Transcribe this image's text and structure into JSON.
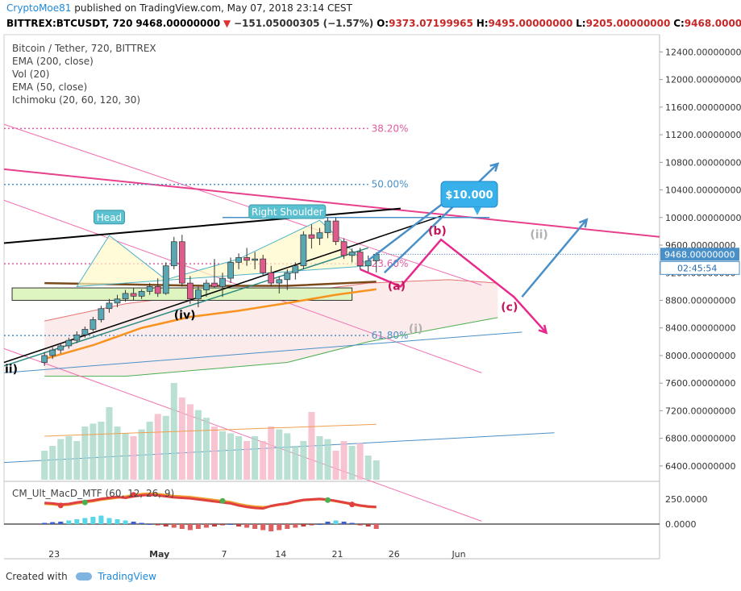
{
  "header": {
    "author": "CryptoMoe81",
    "published_text": "published on TradingView.com, May 07, 2018 23:14 CEST",
    "symbol_line": "BITTREX:BTCUSDT, 720",
    "last": "9468.00000000",
    "change": "−151.05000305 (−1.57%)",
    "o_label": "O:",
    "o_value": "9373.07199965",
    "h_label": "H:",
    "h_value": "9495.00000000",
    "l_label": "L:",
    "l_value": "9205.00000000",
    "c_label": "C:",
    "c_value": "9468.00000000"
  },
  "legend": {
    "title": "Bitcoin / Tether, 720, BITTREX",
    "items": [
      "EMA (200, close)",
      "Vol (20)",
      "EMA (50, close)",
      "Ichimoku (20, 60, 120, 30)"
    ]
  },
  "footer": {
    "created_with": "Created with",
    "brand": "TradingView"
  },
  "colors": {
    "up": "#5aa7b4",
    "down": "#e05a8c",
    "ema200": "#7a4a1a",
    "ema50": "#f7931e",
    "fib": "#e05aa0",
    "fib_blue": "#4a90c8",
    "projection_blue": "#4a90c8",
    "projection_pink": "#e8288c",
    "neckline": "#000000",
    "price_tag": "#4a90c8",
    "macd_line": "#e04040",
    "macd_signal": "#f0a030"
  },
  "chart_data": [
    {
      "type": "candlestick",
      "title": "Bitcoin / Tether, 720, BITTREX",
      "x_ticks": [
        "23",
        "May",
        "7",
        "14",
        "21",
        "26",
        "Jun"
      ],
      "y_ticks": [
        "12400.00000000",
        "12000.00000000",
        "11600.00000000",
        "11200.00000000",
        "10800.00000000",
        "10400.00000000",
        "10000.00000000",
        "9600.00000000",
        "9200.00000000",
        "8800.00000000",
        "8400.00000000",
        "8000.00000000",
        "7600.00000000",
        "7200.00000000",
        "6800.00000000",
        "6400.00000000"
      ],
      "ylim": [
        6200,
        12650
      ],
      "last_price_label": "9468.00000000",
      "countdown_label": "02:45:54",
      "last_price": 9468,
      "candles": [
        [
          7900,
          8050,
          7850,
          8000
        ],
        [
          8000,
          8120,
          7950,
          8080
        ],
        [
          8080,
          8180,
          8030,
          8140
        ],
        [
          8140,
          8260,
          8100,
          8220
        ],
        [
          8220,
          8350,
          8180,
          8300
        ],
        [
          8300,
          8420,
          8260,
          8380
        ],
        [
          8380,
          8560,
          8350,
          8520
        ],
        [
          8520,
          8720,
          8480,
          8680
        ],
        [
          8680,
          8820,
          8620,
          8760
        ],
        [
          8760,
          8880,
          8700,
          8820
        ],
        [
          8820,
          8950,
          8780,
          8900
        ],
        [
          8900,
          8980,
          8800,
          8860
        ],
        [
          8860,
          8960,
          8820,
          8930
        ],
        [
          8930,
          9050,
          8880,
          9000
        ],
        [
          9000,
          9120,
          8850,
          8900
        ],
        [
          8900,
          9350,
          8880,
          9300
        ],
        [
          9300,
          9720,
          9250,
          9650
        ],
        [
          9650,
          9750,
          9000,
          9050
        ],
        [
          9050,
          9150,
          8750,
          8820
        ],
        [
          8820,
          9000,
          8700,
          8950
        ],
        [
          8950,
          9100,
          8850,
          9050
        ],
        [
          9050,
          9400,
          8980,
          9000
        ],
        [
          9000,
          9200,
          8850,
          9120
        ],
        [
          9120,
          9420,
          9050,
          9350
        ],
        [
          9350,
          9480,
          9250,
          9420
        ],
        [
          9420,
          9560,
          9300,
          9380
        ],
        [
          9380,
          9500,
          9250,
          9400
        ],
        [
          9400,
          9460,
          9150,
          9200
        ],
        [
          9200,
          9300,
          9000,
          9050
        ],
        [
          9050,
          9150,
          8900,
          9100
        ],
        [
          9100,
          9250,
          8950,
          9200
        ],
        [
          9200,
          9350,
          9100,
          9300
        ],
        [
          9300,
          9800,
          9250,
          9750
        ],
        [
          9750,
          9900,
          9550,
          9700
        ],
        [
          9700,
          9850,
          9600,
          9780
        ],
        [
          9780,
          10000,
          9700,
          9950
        ],
        [
          9950,
          10000,
          9600,
          9650
        ],
        [
          9650,
          9700,
          9400,
          9450
        ],
        [
          9450,
          9550,
          9350,
          9500
        ],
        [
          9500,
          9560,
          9250,
          9300
        ],
        [
          9300,
          9450,
          9205,
          9373
        ],
        [
          9373,
          9495,
          9205,
          9468
        ]
      ],
      "ema50": [
        [
          0,
          7950
        ],
        [
          6,
          8150
        ],
        [
          12,
          8400
        ],
        [
          18,
          8560
        ],
        [
          24,
          8650
        ],
        [
          30,
          8760
        ],
        [
          36,
          8880
        ],
        [
          41,
          8960
        ]
      ],
      "ema200": [
        [
          0,
          9050
        ],
        [
          10,
          9030
        ],
        [
          20,
          9010
        ],
        [
          30,
          9010
        ],
        [
          41,
          9070
        ]
      ],
      "fib_levels": [
        {
          "label": "38.20%",
          "price": 11290
        },
        {
          "label": "50.00%",
          "price": 10480
        },
        {
          "label": "23.60%",
          "price": 9330
        },
        {
          "label": "61.80%",
          "price": 8290
        }
      ],
      "annotations": {
        "head": "Head",
        "right_shoulder": "Right Shoulder",
        "target": "$10.000",
        "waves": [
          "(a)",
          "(b)",
          "(c)",
          "(i)",
          "(ii)",
          "(iv)",
          "ii)"
        ]
      },
      "x_range": [
        -5,
        76
      ]
    },
    {
      "type": "bar",
      "title": "Vol (20)",
      "volumes": [
        30,
        35,
        42,
        45,
        40,
        55,
        58,
        60,
        75,
        55,
        48,
        45,
        52,
        60,
        68,
        66,
        100,
        85,
        78,
        72,
        64,
        55,
        50,
        48,
        45,
        40,
        45,
        40,
        55,
        52,
        48,
        35,
        40,
        70,
        45,
        42,
        30,
        40,
        35,
        38,
        25,
        20
      ]
    },
    {
      "type": "line",
      "title": "CM_Ult_MacD_MTF (60, 12, 26, 9)",
      "y_ticks": [
        "250.0000",
        "0.0000"
      ],
      "macd": [
        200,
        195,
        185,
        190,
        205,
        215,
        225,
        240,
        250,
        260,
        275,
        290,
        300,
        305,
        300,
        290,
        280,
        275,
        270,
        260,
        250,
        240,
        230,
        220,
        200,
        185,
        175,
        170,
        175,
        190,
        200,
        220,
        235,
        240,
        245,
        238,
        225,
        210,
        195,
        180,
        170,
        165
      ],
      "hist": [
        5,
        8,
        10,
        15,
        20,
        25,
        30,
        35,
        25,
        20,
        15,
        10,
        5,
        0,
        -5,
        -10,
        -15,
        -20,
        -25,
        -20,
        -15,
        -10,
        -5,
        0,
        -10,
        -15,
        -20,
        -25,
        -30,
        -25,
        -20,
        -15,
        -10,
        -5,
        0,
        10,
        15,
        10,
        5,
        -5,
        -10,
        -20
      ]
    }
  ]
}
